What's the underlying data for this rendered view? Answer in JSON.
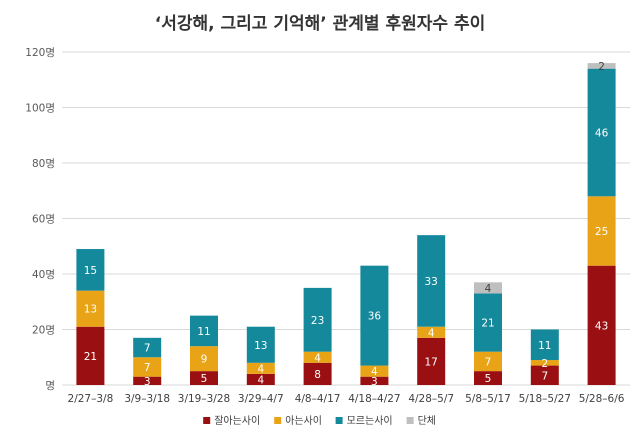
{
  "chart_data": {
    "type": "bar",
    "stacked": true,
    "title": "‘서강해, 그리고 기억해’ 관계별 후원자수 추이",
    "xlabel": "",
    "ylabel": "",
    "ylim": [
      0,
      120
    ],
    "yticks": [
      "명",
      "20명",
      "40명",
      "60명",
      "80명",
      "100명",
      "120명"
    ],
    "grid": true,
    "legend": "bottom",
    "categories": [
      "2/27–3/8",
      "3/9–3/18",
      "3/19–3/28",
      "3/29–4/7",
      "4/8–4/17",
      "4/18–4/27",
      "4/28–5/7",
      "5/8–5/17",
      "5/18–5/27",
      "5/28–6/6"
    ],
    "series": [
      {
        "name": "잘아는사이",
        "color": "#9a1012",
        "label_color": "#ffffff",
        "values": [
          21,
          3,
          5,
          4,
          8,
          3,
          17,
          5,
          7,
          43
        ]
      },
      {
        "name": "아는사이",
        "color": "#e8a317",
        "label_color": "#ffffff",
        "values": [
          13,
          7,
          9,
          4,
          4,
          4,
          4,
          7,
          2,
          25
        ]
      },
      {
        "name": "모르는사이",
        "color": "#14899b",
        "label_color": "#ffffff",
        "values": [
          15,
          7,
          11,
          13,
          23,
          36,
          33,
          21,
          11,
          46
        ]
      },
      {
        "name": "단체",
        "color": "#bfbfbf",
        "label_color": "#404040",
        "values": [
          0,
          0,
          0,
          0,
          0,
          0,
          0,
          4,
          0,
          2
        ]
      }
    ]
  }
}
